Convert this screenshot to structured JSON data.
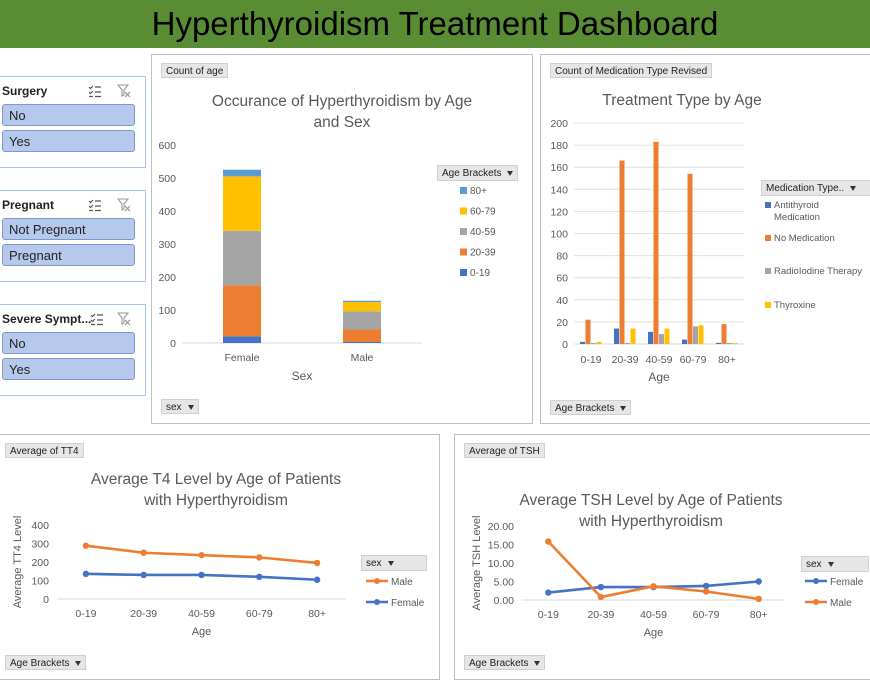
{
  "title": "Hyperthyroidism Treatment Dashboard",
  "slicers": [
    {
      "title": "Surgery",
      "items": [
        "No",
        "Yes"
      ]
    },
    {
      "title": "Pregnant",
      "items": [
        "Not Pregnant",
        "Pregnant"
      ]
    },
    {
      "title": "Severe Sympt...",
      "items": [
        "No",
        "Yes"
      ]
    }
  ],
  "colors": {
    "c019": "#4472c4",
    "c2039": "#ed7d31",
    "c4059": "#a5a5a5",
    "c6079": "#ffc000",
    "c80": "#5b9bd5"
  },
  "chart_data": [
    {
      "type": "bar",
      "stacked": true,
      "field_value": "Count of age",
      "title": "Occurance of Hyperthyroidism by Age and Sex",
      "xlabel": "Sex",
      "ylabel": "",
      "ylim": [
        0,
        600
      ],
      "yticks": [
        0,
        100,
        200,
        300,
        400,
        500,
        600
      ],
      "categories": [
        "Female",
        "Male"
      ],
      "legend_title": "Age Brackets",
      "legend_order": [
        "80+",
        "60-79",
        "40-59",
        "20-39",
        "0-19"
      ],
      "series": [
        {
          "name": "0-19",
          "values": [
            20,
            3
          ],
          "color": "#4472c4"
        },
        {
          "name": "20-39",
          "values": [
            155,
            38
          ],
          "color": "#ed7d31"
        },
        {
          "name": "40-59",
          "values": [
            165,
            55
          ],
          "color": "#a5a5a5"
        },
        {
          "name": "60-79",
          "values": [
            165,
            28
          ],
          "color": "#ffc000"
        },
        {
          "name": "80+",
          "values": [
            20,
            4
          ],
          "color": "#5b9bd5"
        }
      ],
      "row_field": "sex"
    },
    {
      "type": "bar",
      "field_value": "Count of Medication Type Revised",
      "title": "Treatment Type by Age",
      "xlabel": "Age",
      "ylabel": "",
      "ylim": [
        0,
        200
      ],
      "yticks": [
        0,
        20,
        40,
        60,
        80,
        100,
        120,
        140,
        160,
        180,
        200
      ],
      "categories": [
        "0-19",
        "20-39",
        "40-59",
        "60-79",
        "80+"
      ],
      "legend_title": "Medication Type..",
      "series": [
        {
          "name": "Antithyroid Medication",
          "values": [
            2,
            14,
            11,
            4,
            1
          ],
          "color": "#4472c4"
        },
        {
          "name": "No Medication",
          "values": [
            22,
            166,
            183,
            154,
            18
          ],
          "color": "#ed7d31"
        },
        {
          "name": "RadioIodine Therapy",
          "values": [
            1,
            1,
            9,
            16,
            1
          ],
          "color": "#a5a5a5"
        },
        {
          "name": "Thyroxine",
          "values": [
            2,
            14,
            14,
            17,
            1
          ],
          "color": "#ffc000"
        }
      ],
      "row_field": "Age Brackets"
    },
    {
      "type": "line",
      "field_value": "Average of TT4",
      "title": "Average T4 Level by Age of Patients with Hyperthyroidism",
      "xlabel": "Age",
      "ylabel": "Average TT4 Level",
      "ylim": [
        0,
        400
      ],
      "yticks": [
        0,
        100,
        200,
        300,
        400
      ],
      "categories": [
        "0-19",
        "20-39",
        "40-59",
        "60-79",
        "80+"
      ],
      "legend_title": "sex",
      "series": [
        {
          "name": "Male",
          "values": [
            288,
            250,
            237,
            225,
            195
          ],
          "color": "#ed7d31"
        },
        {
          "name": "Female",
          "values": [
            136,
            130,
            130,
            120,
            104
          ],
          "color": "#4472c4"
        }
      ],
      "row_field": "Age Brackets"
    },
    {
      "type": "line",
      "field_value": "Average of TSH",
      "title": "Average TSH Level by Age of Patients with Hyperthyroidism",
      "xlabel": "Age",
      "ylabel": "Average TSH  Level",
      "ylim": [
        0,
        20
      ],
      "yticks": [
        "0.00",
        "5.00",
        "10.00",
        "15.00",
        "20.00"
      ],
      "categories": [
        "0-19",
        "20-39",
        "40-59",
        "60-79",
        "80+"
      ],
      "legend_title": "sex",
      "series": [
        {
          "name": "Female",
          "values": [
            2.0,
            3.5,
            3.5,
            3.8,
            5.0
          ],
          "color": "#4472c4"
        },
        {
          "name": "Male",
          "values": [
            15.8,
            0.8,
            3.7,
            2.3,
            0.3
          ],
          "color": "#ed7d31"
        }
      ],
      "row_field": "Age Brackets"
    }
  ]
}
